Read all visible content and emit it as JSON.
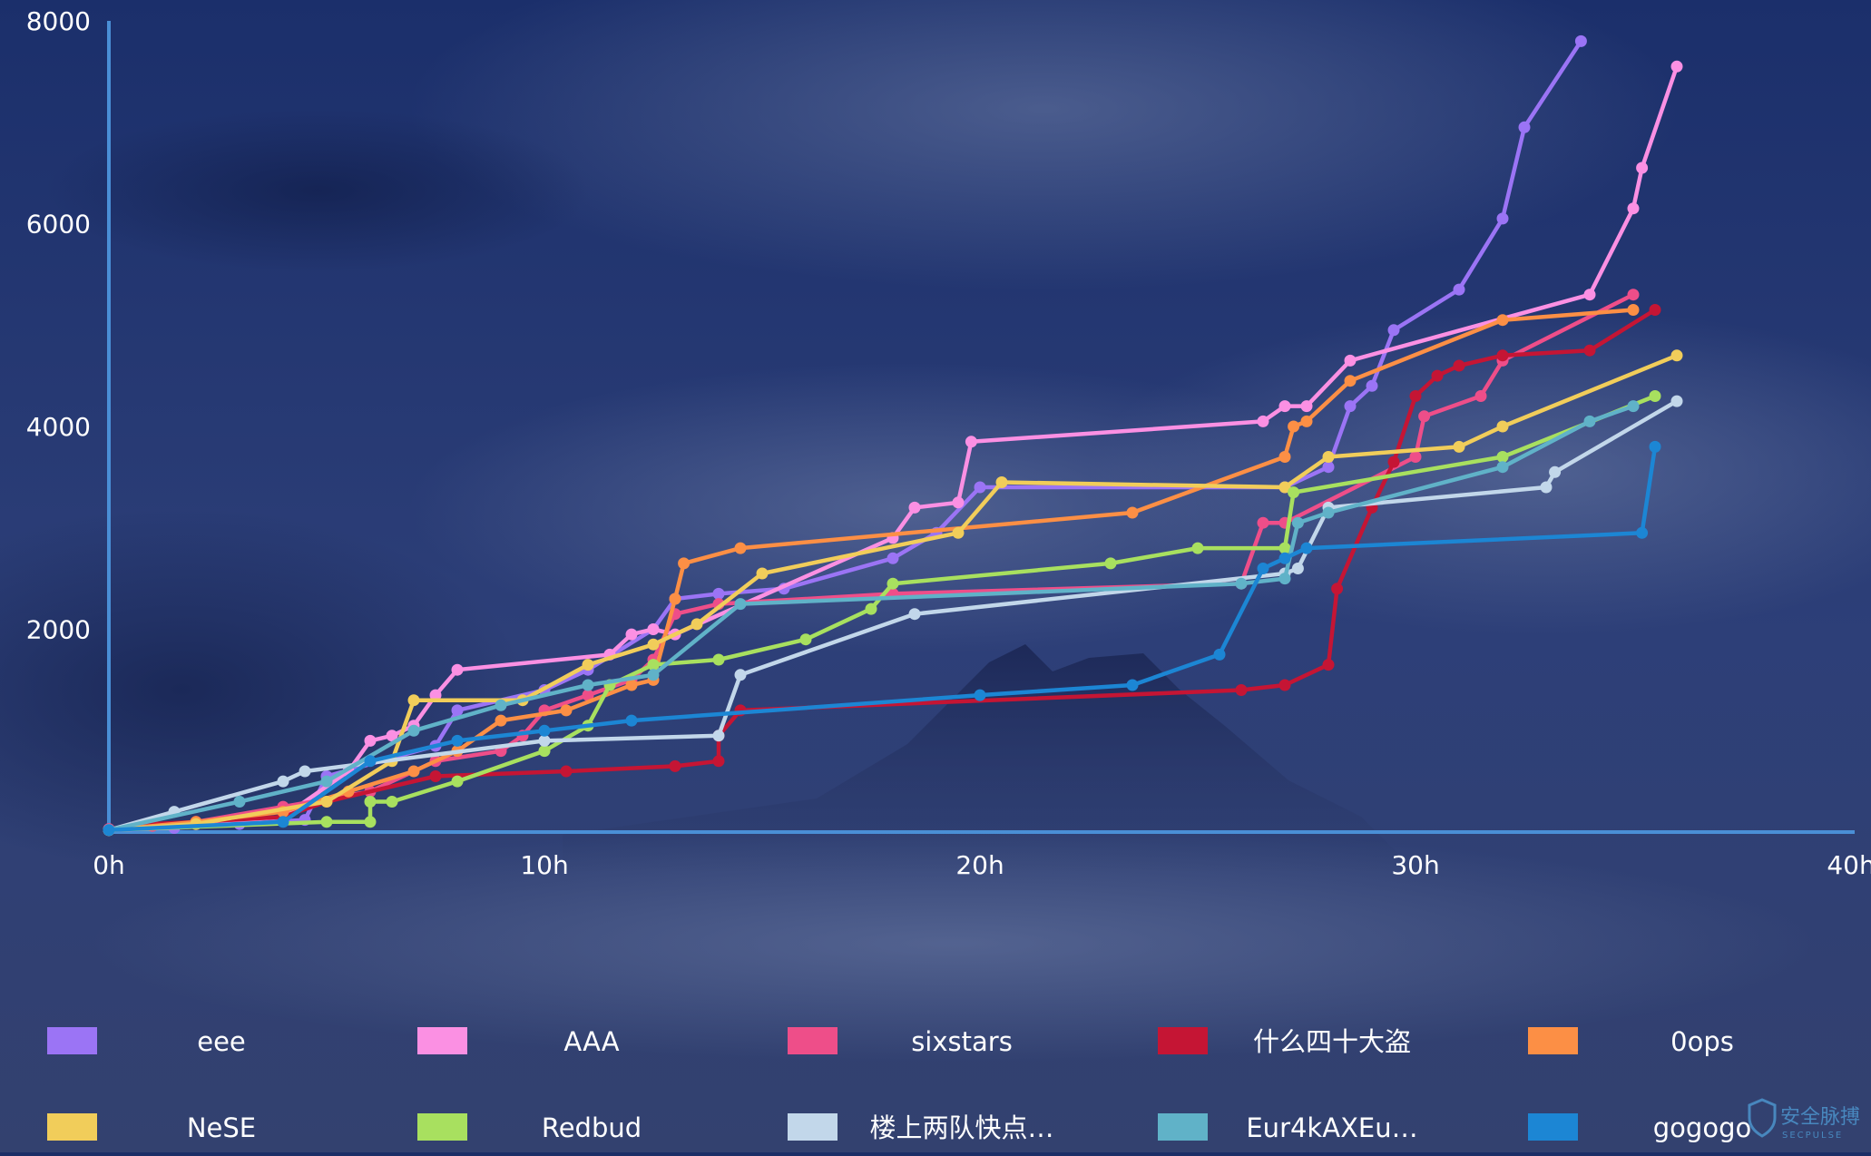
{
  "colors": {
    "background_top": "#1b2f6b",
    "background_mid": "#2d3f78",
    "background_bottom": "#33416f",
    "axis": "#4a8fd6",
    "text": "#ffffff"
  },
  "chart_data": {
    "type": "line",
    "title": "",
    "xlabel": "",
    "ylabel": "",
    "xlim": [
      0,
      40
    ],
    "ylim": [
      0,
      8000
    ],
    "x_ticks": [
      {
        "value": 0,
        "label": "0h"
      },
      {
        "value": 10,
        "label": "10h"
      },
      {
        "value": 20,
        "label": "20h"
      },
      {
        "value": 30,
        "label": "30h"
      },
      {
        "value": 40,
        "label": "40h"
      }
    ],
    "y_ticks": [
      {
        "value": 2000,
        "label": "2000"
      },
      {
        "value": 4000,
        "label": "4000"
      },
      {
        "value": 6000,
        "label": "6000"
      },
      {
        "value": 8000,
        "label": "8000"
      }
    ],
    "grid": false,
    "legend_position": "bottom",
    "series": [
      {
        "name": "eee",
        "color": "#9b74f5",
        "points": [
          [
            0,
            20
          ],
          [
            1.5,
            40
          ],
          [
            3,
            80
          ],
          [
            4.5,
            120
          ],
          [
            5,
            550
          ],
          [
            7.5,
            850
          ],
          [
            8,
            1200
          ],
          [
            10,
            1400
          ],
          [
            11,
            1600
          ],
          [
            12.5,
            2000
          ],
          [
            13,
            2300
          ],
          [
            14,
            2350
          ],
          [
            15.5,
            2400
          ],
          [
            18,
            2700
          ],
          [
            19,
            2950
          ],
          [
            20,
            3400
          ],
          [
            27,
            3400
          ],
          [
            28,
            3600
          ],
          [
            28.5,
            4200
          ],
          [
            29,
            4400
          ],
          [
            29.5,
            4950
          ],
          [
            31,
            5350
          ],
          [
            32,
            6050
          ],
          [
            32.5,
            6950
          ],
          [
            33.8,
            7800
          ]
        ]
      },
      {
        "name": "AAA",
        "color": "#fb90e3",
        "points": [
          [
            0,
            20
          ],
          [
            2,
            80
          ],
          [
            4,
            150
          ],
          [
            5.5,
            600
          ],
          [
            6,
            900
          ],
          [
            6.5,
            950
          ],
          [
            7,
            1050
          ],
          [
            7.5,
            1350
          ],
          [
            8,
            1600
          ],
          [
            11.5,
            1750
          ],
          [
            12,
            1950
          ],
          [
            12.5,
            2000
          ],
          [
            13,
            1950
          ],
          [
            18,
            2900
          ],
          [
            18.5,
            3200
          ],
          [
            19.5,
            3250
          ],
          [
            19.8,
            3850
          ],
          [
            26.5,
            4050
          ],
          [
            27,
            4200
          ],
          [
            27.5,
            4200
          ],
          [
            28.5,
            4650
          ],
          [
            34,
            5300
          ],
          [
            35,
            6150
          ],
          [
            35.2,
            6550
          ],
          [
            36,
            7550
          ]
        ]
      },
      {
        "name": "sixstars",
        "color": "#ee4e89",
        "points": [
          [
            0,
            30
          ],
          [
            1,
            60
          ],
          [
            2,
            100
          ],
          [
            4,
            250
          ],
          [
            6,
            400
          ],
          [
            7.5,
            700
          ],
          [
            9,
            800
          ],
          [
            9.5,
            950
          ],
          [
            10,
            1200
          ],
          [
            11,
            1350
          ],
          [
            12,
            1500
          ],
          [
            12.5,
            1700
          ],
          [
            13,
            2150
          ],
          [
            14,
            2250
          ],
          [
            18,
            2350
          ],
          [
            26,
            2450
          ],
          [
            26.5,
            3050
          ],
          [
            27,
            3050
          ],
          [
            30,
            3700
          ],
          [
            30.2,
            4100
          ],
          [
            31.5,
            4300
          ],
          [
            32,
            4650
          ],
          [
            35,
            5300
          ]
        ]
      },
      {
        "name": "什么四十大盗",
        "color": "#c51534",
        "points": [
          [
            0,
            20
          ],
          [
            1,
            80
          ],
          [
            2,
            100
          ],
          [
            4,
            150
          ],
          [
            5,
            300
          ],
          [
            7.5,
            550
          ],
          [
            10.5,
            600
          ],
          [
            13,
            650
          ],
          [
            14,
            700
          ],
          [
            14,
            950
          ],
          [
            14.5,
            1200
          ],
          [
            26,
            1400
          ],
          [
            27,
            1450
          ],
          [
            28,
            1650
          ],
          [
            28.2,
            2400
          ],
          [
            29,
            3200
          ],
          [
            29.5,
            3650
          ],
          [
            30,
            4300
          ],
          [
            30.5,
            4500
          ],
          [
            31,
            4600
          ],
          [
            32,
            4700
          ],
          [
            34,
            4750
          ],
          [
            35.5,
            5150
          ]
        ]
      },
      {
        "name": "0ops",
        "color": "#fc8f45",
        "points": [
          [
            0,
            20
          ],
          [
            2,
            100
          ],
          [
            4,
            200
          ],
          [
            5.5,
            400
          ],
          [
            7,
            600
          ],
          [
            8,
            800
          ],
          [
            9,
            1100
          ],
          [
            10.5,
            1200
          ],
          [
            12,
            1450
          ],
          [
            12.5,
            1500
          ],
          [
            13,
            2300
          ],
          [
            13.2,
            2650
          ],
          [
            14.5,
            2800
          ],
          [
            23.5,
            3150
          ],
          [
            27,
            3700
          ],
          [
            27.2,
            4000
          ],
          [
            27.5,
            4050
          ],
          [
            28.5,
            4450
          ],
          [
            32,
            5050
          ],
          [
            35,
            5150
          ]
        ]
      },
      {
        "name": "NeSE",
        "color": "#f1cd5a",
        "points": [
          [
            0,
            20
          ],
          [
            2,
            80
          ],
          [
            5,
            300
          ],
          [
            6.5,
            700
          ],
          [
            7,
            1300
          ],
          [
            9.5,
            1300
          ],
          [
            11,
            1650
          ],
          [
            12.5,
            1850
          ],
          [
            13.5,
            2050
          ],
          [
            15,
            2550
          ],
          [
            19.5,
            2950
          ],
          [
            20.5,
            3450
          ],
          [
            27,
            3400
          ],
          [
            28,
            3700
          ],
          [
            31,
            3800
          ],
          [
            32,
            4000
          ],
          [
            36,
            4700
          ]
        ]
      },
      {
        "name": "Redbud",
        "color": "#a8e05f",
        "points": [
          [
            0,
            20
          ],
          [
            5,
            100
          ],
          [
            6,
            100
          ],
          [
            6,
            300
          ],
          [
            6.5,
            300
          ],
          [
            8,
            500
          ],
          [
            10,
            800
          ],
          [
            11,
            1050
          ],
          [
            11.5,
            1450
          ],
          [
            12.5,
            1650
          ],
          [
            14,
            1700
          ],
          [
            16,
            1900
          ],
          [
            17.5,
            2200
          ],
          [
            18,
            2450
          ],
          [
            23,
            2650
          ],
          [
            25,
            2800
          ],
          [
            27,
            2800
          ],
          [
            27.2,
            3350
          ],
          [
            32,
            3700
          ],
          [
            35.5,
            4300
          ]
        ]
      },
      {
        "name": "楼上两队快点…",
        "color": "#c2d7ea",
        "points": [
          [
            0,
            20
          ],
          [
            1.5,
            200
          ],
          [
            4,
            500
          ],
          [
            4.5,
            600
          ],
          [
            10,
            900
          ],
          [
            14,
            950
          ],
          [
            14.5,
            1550
          ],
          [
            18.5,
            2150
          ],
          [
            27,
            2550
          ],
          [
            27.3,
            2600
          ],
          [
            28,
            3200
          ],
          [
            33,
            3400
          ],
          [
            33.2,
            3550
          ],
          [
            36,
            4250
          ]
        ]
      },
      {
        "name": "Eur4kAXEu…",
        "color": "#60b2c8",
        "points": [
          [
            0,
            20
          ],
          [
            3,
            300
          ],
          [
            5,
            500
          ],
          [
            7,
            1000
          ],
          [
            9,
            1250
          ],
          [
            11,
            1450
          ],
          [
            12.5,
            1550
          ],
          [
            14.5,
            2250
          ],
          [
            26,
            2450
          ],
          [
            27,
            2500
          ],
          [
            27.3,
            3050
          ],
          [
            28,
            3150
          ],
          [
            32,
            3600
          ],
          [
            34,
            4050
          ],
          [
            35,
            4200
          ]
        ]
      },
      {
        "name": "gogogo",
        "color": "#1c86d4",
        "points": [
          [
            0,
            20
          ],
          [
            4,
            100
          ],
          [
            6,
            700
          ],
          [
            8,
            900
          ],
          [
            10,
            1000
          ],
          [
            12,
            1100
          ],
          [
            20,
            1350
          ],
          [
            23.5,
            1450
          ],
          [
            25.5,
            1750
          ],
          [
            26.5,
            2600
          ],
          [
            27,
            2700
          ],
          [
            27.5,
            2800
          ],
          [
            35.2,
            2950
          ],
          [
            35.5,
            3800
          ]
        ]
      }
    ]
  },
  "legend": [
    {
      "label": "eee",
      "color": "#9b74f5"
    },
    {
      "label": "AAA",
      "color": "#fb90e3"
    },
    {
      "label": "sixstars",
      "color": "#ee4e89"
    },
    {
      "label": "什么四十大盗",
      "color": "#c51534"
    },
    {
      "label": "0ops",
      "color": "#fc8f45"
    },
    {
      "label": "NeSE",
      "color": "#f1cd5a"
    },
    {
      "label": "Redbud",
      "color": "#a8e05f"
    },
    {
      "label": "楼上两队快点…",
      "color": "#c2d7ea"
    },
    {
      "label": "Eur4kAXEu…",
      "color": "#60b2c8"
    },
    {
      "label": "gogogo",
      "color": "#1c86d4"
    }
  ],
  "watermark": {
    "text": "安全脉搏",
    "sub": "SECPULSE"
  }
}
